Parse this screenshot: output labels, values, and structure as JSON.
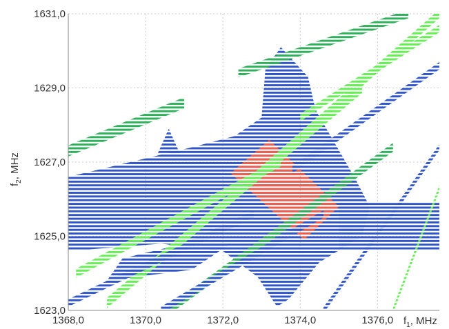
{
  "chart_data": {
    "type": "heatmap",
    "title": "",
    "xlabel": "f1, MHz",
    "xlabel_parts": {
      "main": "f",
      "sub": "1",
      "unit": ", MHz"
    },
    "ylabel": "f2, MHz",
    "ylabel_parts": {
      "main": "f",
      "sub": "2",
      "unit": ", MHz"
    },
    "xlim": [
      1368.0,
      1377.6
    ],
    "ylim": [
      1623.0,
      1631.0
    ],
    "x_ticks": [
      {
        "value": 1368.0,
        "label": "1368,0"
      },
      {
        "value": 1370.0,
        "label": "1370,0"
      },
      {
        "value": 1372.0,
        "label": "1372,0"
      },
      {
        "value": 1374.0,
        "label": "1374,0"
      },
      {
        "value": 1376.0,
        "label": "1376,0"
      }
    ],
    "y_ticks": [
      {
        "value": 1623.0,
        "label": "1623,0"
      },
      {
        "value": 1625.0,
        "label": "1625,0"
      },
      {
        "value": 1627.0,
        "label": "1627,0"
      },
      {
        "value": 1629.0,
        "label": "1629,0"
      },
      {
        "value": 1631.0,
        "label": "1631,0"
      }
    ],
    "grid": true,
    "grid_style": "dotted",
    "legend": "none",
    "row_step_mhz": 0.1,
    "colors": {
      "blue": "#2f55c9",
      "green_dark": "#2eb05a",
      "green_light": "#66ee55",
      "red": "#ef5e4a",
      "grid": "#c8c8c8",
      "axis": "#8a8a8a"
    },
    "regions": [
      {
        "name": "blue-main-block",
        "color": "blue",
        "polygon": [
          [
            1368.0,
            1626.6
          ],
          [
            1371.2,
            1627.4
          ],
          [
            1372.3,
            1627.7
          ],
          [
            1373.0,
            1628.2
          ],
          [
            1373.1,
            1629.5
          ],
          [
            1373.5,
            1630.1
          ],
          [
            1374.2,
            1629.3
          ],
          [
            1374.4,
            1628.4
          ],
          [
            1375.4,
            1626.6
          ],
          [
            1375.8,
            1625.8
          ],
          [
            1375.6,
            1625.0
          ],
          [
            1374.5,
            1624.3
          ],
          [
            1373.7,
            1623.3
          ],
          [
            1373.4,
            1623.1
          ],
          [
            1372.9,
            1623.9
          ],
          [
            1372.0,
            1624.6
          ],
          [
            1370.4,
            1624.8
          ],
          [
            1368.0,
            1624.6
          ]
        ]
      },
      {
        "name": "blue-right-band",
        "color": "blue",
        "polygon": [
          [
            1375.0,
            1624.6
          ],
          [
            1377.6,
            1624.6
          ],
          [
            1377.6,
            1625.9
          ],
          [
            1375.0,
            1625.9
          ]
        ]
      },
      {
        "name": "blue-lower-left-wedge",
        "color": "blue",
        "polygon": [
          [
            1369.0,
            1623.8
          ],
          [
            1371.2,
            1624.1
          ],
          [
            1372.2,
            1624.8
          ],
          [
            1370.6,
            1624.7
          ],
          [
            1369.4,
            1624.4
          ]
        ]
      },
      {
        "name": "blue-top-spike",
        "color": "blue",
        "polygon": [
          [
            1370.3,
            1627.2
          ],
          [
            1370.6,
            1627.9
          ],
          [
            1370.9,
            1627.2
          ]
        ]
      },
      {
        "name": "red-diamond",
        "color": "red",
        "polygon": [
          [
            1372.2,
            1626.7
          ],
          [
            1373.2,
            1627.6
          ],
          [
            1375.0,
            1625.8
          ],
          [
            1374.1,
            1624.9
          ]
        ]
      }
    ],
    "diagonal_bands": [
      {
        "name": "green-upper-left",
        "color": "green_dark",
        "x1": 1368.0,
        "y1": 1627.3,
        "x2": 1371.0,
        "y2": 1628.6,
        "half_width": 0.15
      },
      {
        "name": "green-upper-right-1",
        "color": "green_dark",
        "x1": 1372.4,
        "y1": 1629.4,
        "x2": 1376.8,
        "y2": 1631.0,
        "half_width": 0.12
      },
      {
        "name": "green-upper-right-2",
        "color": "green_light",
        "x1": 1374.0,
        "y1": 1628.2,
        "x2": 1377.6,
        "y2": 1630.6,
        "half_width": 0.1
      },
      {
        "name": "green-mid-steep",
        "color": "green_light",
        "x1": 1372.6,
        "y1": 1626.4,
        "x2": 1377.6,
        "y2": 1631.0,
        "half_width": 0.12
      },
      {
        "name": "green-main-diagonal",
        "color": "green_light",
        "x1": 1369.0,
        "y1": 1623.2,
        "x2": 1375.6,
        "y2": 1629.0,
        "half_width": 0.14
      },
      {
        "name": "green-lower-diagonal",
        "color": "green_light",
        "x1": 1368.2,
        "y1": 1624.0,
        "x2": 1373.5,
        "y2": 1627.0,
        "half_width": 0.12
      },
      {
        "name": "green-bottom-diagonal",
        "color": "green_dark",
        "x1": 1370.6,
        "y1": 1623.0,
        "x2": 1376.4,
        "y2": 1627.4,
        "half_width": 0.12
      },
      {
        "name": "green-right-edge",
        "color": "green_light",
        "x1": 1376.4,
        "y1": 1623.0,
        "x2": 1377.6,
        "y2": 1626.3,
        "half_width": 0.08
      },
      {
        "name": "blue-lower-left-streak",
        "color": "blue",
        "x1": 1368.0,
        "y1": 1623.2,
        "x2": 1372.8,
        "y2": 1625.6,
        "half_width": 0.1
      },
      {
        "name": "blue-lower-streak",
        "color": "blue",
        "x1": 1370.4,
        "y1": 1623.0,
        "x2": 1374.6,
        "y2": 1625.6,
        "half_width": 0.1
      },
      {
        "name": "blue-upper-right-streak",
        "color": "blue",
        "x1": 1373.8,
        "y1": 1626.8,
        "x2": 1377.6,
        "y2": 1629.6,
        "half_width": 0.1
      },
      {
        "name": "blue-right-lower-streak",
        "color": "blue",
        "x1": 1374.6,
        "y1": 1623.0,
        "x2": 1377.6,
        "y2": 1627.4,
        "half_width": 0.08
      }
    ]
  }
}
